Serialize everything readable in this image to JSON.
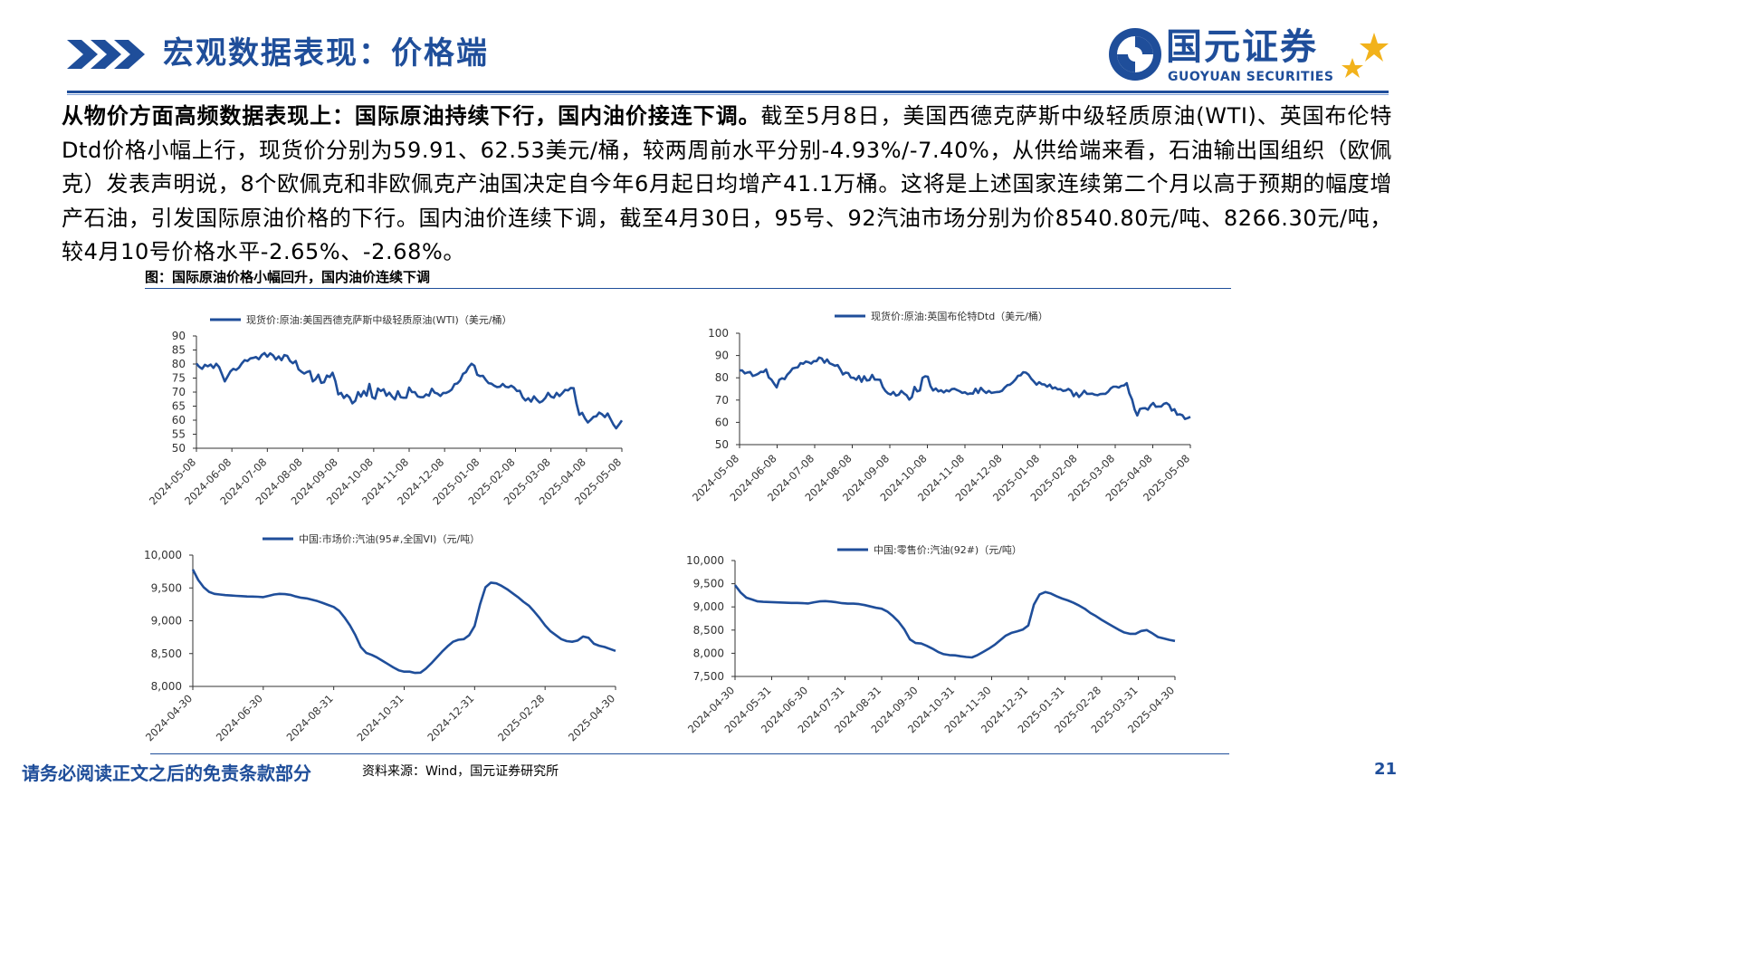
{
  "header": {
    "title": "宏观数据表现：价格端",
    "logo_cn": "国元证券",
    "logo_en": "GUOYUAN SECURITIES",
    "accent": "#1f4e9a",
    "logo_star_color": "#f2b21b"
  },
  "body": {
    "lead": "从物价方面高频数据表现上：国际原油持续下行，国内油价接连下调。",
    "text": "截至5月8日，美国西德克萨斯中级轻质原油(WTI)、英国布伦特Dtd价格小幅上行，现货价分别为59.91、62.53美元/桶，较两周前水平分别-4.93%/-7.40%，从供给端来看，石油输出国组织（欧佩克）发表声明说，8个欧佩克和非欧佩克产油国决定自今年6月起日均增产41.1万桶。这将是上述国家连续第二个月以高于预期的幅度增产石油，引发国际原油价格的下行。国内油价连续下调，截至4月30日，95号、92汽油市场分别为价8540.80元/吨、8266.30元/吨，较4月10号价格水平-2.65%、-2.68%。"
  },
  "figure_caption": "图：国际原油价格小幅回升，国内油价连续下调",
  "footer": {
    "disclaimer": "请务必阅读正文之后的免责条款部分",
    "source": "资料来源：Wind，国元证券研究所",
    "page": "21"
  },
  "chart_data": [
    {
      "type": "line",
      "series": [
        {
          "name": "现货价:原油:美国西德克萨斯中级轻质原油(WTI)（美元/桶）",
          "color": "#1f4e9a",
          "values": [
            80.2,
            79.0,
            78.3,
            79.7,
            79.2,
            79.8,
            78.6,
            80.1,
            78.9,
            76.4,
            73.8,
            75.6,
            77.4,
            78.3,
            77.9,
            78.7,
            80.2,
            81.4,
            81.1,
            82.0,
            82.2,
            82.5,
            81.7,
            83.2,
            83.9,
            82.6,
            83.8,
            83.1,
            81.6,
            82.7,
            81.4,
            83.2,
            82.9,
            81.1,
            80.3,
            81.1,
            78.1,
            77.3,
            76.6,
            77.2,
            77.5,
            73.8,
            74.6,
            76.2,
            73.3,
            73.5,
            75.9,
            75.4,
            76.9,
            73.9,
            69.2,
            69.7,
            67.9,
            69.0,
            68.1,
            66.0,
            66.9,
            70.0,
            68.4,
            70.4,
            68.7,
            72.9,
            68.2,
            67.6,
            71.3,
            70.4,
            71.0,
            68.7,
            69.8,
            68.4,
            67.4,
            70.3,
            68.2,
            68.0,
            68.0,
            71.6,
            70.0,
            70.0,
            68.5,
            68.2,
            68.2,
            69.2,
            68.7,
            71.2,
            69.8,
            69.5,
            68.6,
            69.7,
            69.7,
            70.2,
            70.9,
            72.8,
            73.1,
            74.2,
            76.5,
            77.1,
            78.9,
            80.1,
            79.4,
            76.2,
            75.7,
            75.8,
            74.4,
            73.2,
            73.0,
            72.3,
            71.8,
            71.9,
            72.9,
            71.9,
            71.7,
            72.3,
            71.6,
            70.4,
            70.5,
            68.2,
            67.0,
            67.8,
            66.6,
            68.5,
            67.3,
            66.3,
            66.8,
            67.9,
            69.7,
            68.4,
            68.0,
            69.7,
            68.6,
            69.6,
            70.8,
            70.6,
            71.5,
            71.4,
            65.9,
            61.9,
            62.6,
            60.6,
            59.2,
            60.1,
            61.2,
            61.4,
            62.7,
            62.1,
            61.1,
            62.4,
            60.4,
            58.5,
            57.1,
            58.5,
            59.9
          ]
        }
      ],
      "x_ticks": [
        "2024-05-08",
        "2024-06-08",
        "2024-07-08",
        "2024-08-08",
        "2024-09-08",
        "2024-10-08",
        "2024-11-08",
        "2024-12-08",
        "2025-01-08",
        "2025-02-08",
        "2025-03-08",
        "2025-04-08",
        "2025-05-08"
      ],
      "y_ticks": [
        "50",
        "55",
        "60",
        "65",
        "70",
        "75",
        "80",
        "85",
        "90"
      ],
      "ylim": [
        50,
        90
      ],
      "legend": "top",
      "grid": false
    },
    {
      "type": "line",
      "series": [
        {
          "name": "现货价:原油:英国布伦特Dtd（美元/桶）",
          "color": "#1f4e9a",
          "values": [
            83.3,
            83.3,
            82.0,
            82.4,
            82.6,
            80.8,
            81.2,
            81.8,
            82.7,
            82.6,
            83.8,
            80.2,
            79.2,
            77.4,
            75.7,
            79.1,
            79.8,
            79.4,
            81.4,
            82.6,
            84.2,
            84.5,
            84.7,
            86.6,
            86.3,
            87.3,
            87.0,
            86.4,
            87.5,
            87.5,
            89.1,
            88.7,
            86.8,
            88.2,
            86.5,
            86.0,
            85.4,
            85.7,
            83.8,
            81.5,
            82.3,
            82.1,
            80.1,
            80.0,
            79.1,
            80.8,
            78.2,
            80.7,
            78.8,
            79.0,
            81.3,
            79.2,
            79.2,
            79.1,
            75.9,
            74.1,
            73.0,
            72.5,
            73.6,
            72.0,
            72.4,
            74.1,
            73.0,
            72.1,
            70.2,
            71.4,
            75.9,
            73.9,
            74.3,
            80.0,
            80.7,
            80.5,
            76.3,
            74.3,
            75.2,
            73.9,
            74.4,
            73.4,
            74.4,
            73.9,
            74.9,
            75.1,
            74.5,
            74.0,
            73.2,
            73.5,
            72.7,
            73.0,
            72.9,
            75.1,
            73.2,
            75.5,
            74.2,
            73.2,
            74.1,
            73.2,
            73.4,
            73.6,
            73.7,
            74.2,
            75.6,
            76.7,
            76.9,
            77.9,
            79.2,
            80.9,
            81.1,
            82.5,
            82.3,
            81.4,
            79.6,
            78.3,
            76.9,
            78.0,
            77.1,
            77.0,
            76.0,
            76.9,
            75.2,
            75.7,
            74.8,
            74.9,
            74.1,
            74.3,
            75.0,
            74.2,
            71.8,
            73.2,
            71.4,
            72.6,
            74.2,
            72.8,
            72.8,
            72.9,
            72.4,
            72.2,
            72.7,
            72.8,
            72.8,
            73.8,
            75.3,
            76.0,
            76.0,
            75.6,
            76.4,
            76.6,
            77.6,
            73.0,
            70.3,
            65.7,
            63.1,
            66.0,
            66.3,
            66.4,
            65.7,
            67.6,
            68.7,
            67.0,
            67.1,
            67.1,
            68.3,
            68.7,
            67.8,
            65.3,
            65.9,
            63.4,
            63.6,
            63.2,
            61.5,
            61.9,
            62.5
          ]
        }
      ],
      "x_ticks": [
        "2024-05-08",
        "2024-06-08",
        "2024-07-08",
        "2024-08-08",
        "2024-09-08",
        "2024-10-08",
        "2024-11-08",
        "2024-12-08",
        "2025-01-08",
        "2025-02-08",
        "2025-03-08",
        "2025-04-08",
        "2025-05-08"
      ],
      "y_ticks": [
        "50",
        "60",
        "70",
        "80",
        "90",
        "100"
      ],
      "ylim": [
        50,
        100
      ],
      "legend": "top",
      "grid": false
    },
    {
      "type": "line",
      "series": [
        {
          "name": "中国:市场价:汽油(95#,全国VI)（元/吨）",
          "color": "#1f4e9a",
          "values": [
            9780,
            9620,
            9510,
            9440,
            9410,
            9400,
            9390,
            9385,
            9380,
            9375,
            9370,
            9368,
            9365,
            9360,
            9380,
            9400,
            9410,
            9405,
            9395,
            9370,
            9350,
            9340,
            9320,
            9300,
            9270,
            9240,
            9210,
            9150,
            9050,
            8930,
            8780,
            8600,
            8510,
            8480,
            8440,
            8390,
            8340,
            8290,
            8245,
            8225,
            8225,
            8205,
            8210,
            8270,
            8350,
            8440,
            8530,
            8610,
            8680,
            8710,
            8720,
            8780,
            8920,
            9250,
            9510,
            9580,
            9570,
            9530,
            9480,
            9420,
            9360,
            9290,
            9230,
            9140,
            9040,
            8930,
            8840,
            8780,
            8720,
            8690,
            8680,
            8700,
            8760,
            8740,
            8650,
            8620,
            8600,
            8570,
            8541
          ]
        }
      ],
      "x_ticks": [
        "2024-04-30",
        "2024-06-30",
        "2024-08-31",
        "2024-10-31",
        "2024-12-31",
        "2025-02-28",
        "2025-04-30"
      ],
      "y_ticks": [
        "8,000",
        "8,500",
        "9,000",
        "9,500",
        "10,000"
      ],
      "ylim": [
        8000,
        10000
      ],
      "legend": "top",
      "grid": false
    },
    {
      "type": "line",
      "series": [
        {
          "name": "中国:零售价:汽油(92#)（元/吨）",
          "color": "#1f4e9a",
          "values": [
            9470,
            9310,
            9200,
            9160,
            9120,
            9110,
            9105,
            9100,
            9095,
            9090,
            9085,
            9085,
            9080,
            9075,
            9100,
            9120,
            9125,
            9115,
            9100,
            9080,
            9070,
            9070,
            9060,
            9040,
            9010,
            8980,
            8960,
            8900,
            8800,
            8680,
            8520,
            8300,
            8220,
            8210,
            8160,
            8100,
            8030,
            7980,
            7960,
            7955,
            7935,
            7920,
            7910,
            7960,
            8030,
            8100,
            8180,
            8280,
            8380,
            8440,
            8470,
            8510,
            8600,
            9050,
            9270,
            9320,
            9290,
            9230,
            9180,
            9140,
            9090,
            9030,
            8960,
            8870,
            8800,
            8720,
            8650,
            8580,
            8510,
            8450,
            8420,
            8420,
            8480,
            8500,
            8430,
            8350,
            8320,
            8290,
            8266
          ]
        }
      ],
      "x_ticks": [
        "2024-04-30",
        "2024-05-31",
        "2024-06-30",
        "2024-07-31",
        "2024-08-31",
        "2024-09-30",
        "2024-10-31",
        "2024-11-30",
        "2024-12-31",
        "2025-01-31",
        "2025-02-28",
        "2025-03-31",
        "2025-04-30"
      ],
      "y_ticks": [
        "7,500",
        "8,000",
        "8,500",
        "9,000",
        "9,500",
        "10,000"
      ],
      "ylim": [
        7500,
        10000
      ],
      "legend": "top",
      "grid": false
    }
  ]
}
